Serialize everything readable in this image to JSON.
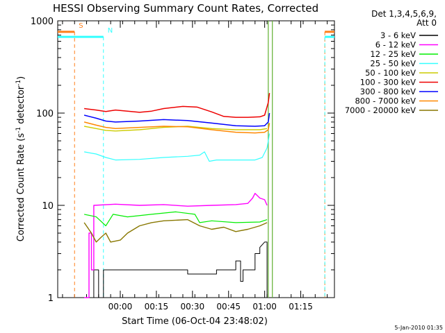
{
  "chart_data": {
    "type": "line",
    "title": "HESSI Observing Summary Count Rates, Corrected",
    "xlabel": "Start Time (06-Oct-04 23:48:02)",
    "ylabel_main": "Corrected Count Rate (s",
    "ylabel_sup1": "-1",
    "ylabel_mid": " detector",
    "ylabel_sup2": "-1",
    "ylabel_end": ")",
    "yscale": "log",
    "ylim": [
      1,
      1000
    ],
    "xlim_minutes_from_start": [
      -14,
      101
    ],
    "x_tick_minutes_from_start": [
      12,
      27,
      42,
      57,
      72,
      87
    ],
    "x_tick_labels": [
      "00:00",
      "00:15",
      "00:30",
      "00:45",
      "01:00",
      "01:15"
    ],
    "y_tick_values": [
      1,
      10,
      100,
      1000
    ],
    "y_tick_labels": [
      "1",
      "10",
      "100",
      "1000"
    ],
    "legend_header": [
      "Det 1,3,4,5,6,9,",
      "Att 0"
    ],
    "legend_position": "right",
    "footer_date": "5-Jan-2010 01:35",
    "markers": [
      {
        "label": "S",
        "x_start": -14,
        "x_end": -7,
        "y": 760,
        "color": "#ff7f1a",
        "line_x": [
          -7,
          97
        ]
      },
      {
        "label": "N",
        "x_start": -14,
        "x_end": 5,
        "y": 670,
        "color": "#33ffff",
        "line_x": [
          5,
          97
        ]
      }
    ],
    "vertical_lines": [
      {
        "x": 73.5,
        "color": "#5fb030"
      },
      {
        "x": 75.2,
        "color": "#5fb030"
      }
    ],
    "series": [
      {
        "name": "3 - 6 keV",
        "color": "#000000",
        "width": 1.0,
        "points": [
          [
            -1,
            1
          ],
          [
            1,
            1
          ],
          [
            1,
            2
          ],
          [
            3,
            2
          ],
          [
            3,
            1
          ],
          [
            5,
            1
          ],
          [
            5,
            2
          ],
          [
            40,
            2
          ],
          [
            40,
            1.8
          ],
          [
            52,
            1.8
          ],
          [
            52,
            2
          ],
          [
            60,
            2
          ],
          [
            60,
            2.5
          ],
          [
            62,
            2.5
          ],
          [
            62,
            1.5
          ],
          [
            63,
            1.5
          ],
          [
            63,
            2
          ],
          [
            68,
            2
          ],
          [
            68,
            3
          ],
          [
            70,
            3
          ],
          [
            70,
            3.5
          ],
          [
            72,
            4
          ],
          [
            73,
            4
          ],
          [
            73,
            1
          ]
        ]
      },
      {
        "name": "6 - 12 keV",
        "color": "#ff00ff",
        "width": 1.4,
        "points": [
          [
            -3,
            1
          ],
          [
            -1,
            1
          ],
          [
            -1,
            5
          ],
          [
            0,
            5
          ],
          [
            0,
            2
          ],
          [
            1,
            2
          ],
          [
            1,
            10
          ],
          [
            10,
            10.3
          ],
          [
            20,
            10
          ],
          [
            30,
            10.2
          ],
          [
            40,
            9.8
          ],
          [
            50,
            10
          ],
          [
            60,
            10.2
          ],
          [
            65,
            10.5
          ],
          [
            67,
            12
          ],
          [
            68,
            13.5
          ],
          [
            70,
            12
          ],
          [
            72,
            11.5
          ],
          [
            73,
            10
          ]
        ]
      },
      {
        "name": "12 - 25 keV",
        "color": "#00ee00",
        "width": 1.2,
        "points": [
          [
            -3,
            8
          ],
          [
            2,
            7.5
          ],
          [
            6,
            6
          ],
          [
            9,
            8
          ],
          [
            15,
            7.5
          ],
          [
            25,
            8
          ],
          [
            35,
            8.5
          ],
          [
            43,
            8
          ],
          [
            45,
            6.5
          ],
          [
            50,
            6.8
          ],
          [
            60,
            6.5
          ],
          [
            70,
            6.6
          ],
          [
            73,
            7
          ]
        ]
      },
      {
        "name": "25 - 50 keV",
        "color": "#33ffff",
        "width": 1.2,
        "points": [
          [
            -3,
            38
          ],
          [
            2,
            36
          ],
          [
            6,
            33
          ],
          [
            10,
            31
          ],
          [
            20,
            31.5
          ],
          [
            30,
            33
          ],
          [
            40,
            34
          ],
          [
            45,
            35
          ],
          [
            47,
            38
          ],
          [
            49,
            30
          ],
          [
            52,
            31
          ],
          [
            60,
            31
          ],
          [
            68,
            31
          ],
          [
            71,
            33
          ],
          [
            73,
            42
          ],
          [
            74,
            60
          ]
        ]
      },
      {
        "name": "50 - 100 keV",
        "color": "#cccc00",
        "width": 1.4,
        "points": [
          [
            -3,
            72
          ],
          [
            2,
            68
          ],
          [
            6,
            65
          ],
          [
            10,
            64
          ],
          [
            20,
            66
          ],
          [
            30,
            70
          ],
          [
            40,
            72
          ],
          [
            50,
            68
          ],
          [
            60,
            66
          ],
          [
            70,
            66
          ],
          [
            73,
            68
          ]
        ]
      },
      {
        "name": "100 - 300 keV",
        "color": "#ee0000",
        "width": 1.5,
        "points": [
          [
            -3,
            112
          ],
          [
            2,
            108
          ],
          [
            6,
            104
          ],
          [
            10,
            108
          ],
          [
            20,
            102
          ],
          [
            25,
            105
          ],
          [
            30,
            112
          ],
          [
            38,
            118
          ],
          [
            44,
            116
          ],
          [
            50,
            103
          ],
          [
            55,
            92
          ],
          [
            60,
            90
          ],
          [
            65,
            90
          ],
          [
            70,
            91
          ],
          [
            72,
            95
          ],
          [
            73.5,
            130
          ],
          [
            74,
            165
          ]
        ]
      },
      {
        "name": "300 - 800 keV",
        "color": "#0000ff",
        "width": 1.5,
        "points": [
          [
            -3,
            95
          ],
          [
            2,
            88
          ],
          [
            6,
            82
          ],
          [
            10,
            80
          ],
          [
            20,
            82
          ],
          [
            30,
            85
          ],
          [
            40,
            83
          ],
          [
            50,
            78
          ],
          [
            60,
            73
          ],
          [
            68,
            72
          ],
          [
            72,
            73
          ],
          [
            73.5,
            80
          ],
          [
            74,
            100
          ]
        ]
      },
      {
        "name": "800 - 7000 keV",
        "color": "#ff8800",
        "width": 1.5,
        "points": [
          [
            -3,
            80
          ],
          [
            2,
            74
          ],
          [
            6,
            70
          ],
          [
            10,
            68
          ],
          [
            20,
            70
          ],
          [
            30,
            72
          ],
          [
            40,
            71
          ],
          [
            50,
            66
          ],
          [
            60,
            62
          ],
          [
            68,
            61
          ],
          [
            72,
            62
          ],
          [
            73.5,
            66
          ],
          [
            74,
            78
          ]
        ]
      },
      {
        "name": "7000 - 20000 keV",
        "color": "#887700",
        "width": 1.4,
        "points": [
          [
            -3,
            6.5
          ],
          [
            0,
            5
          ],
          [
            2,
            4
          ],
          [
            4,
            4.5
          ],
          [
            6,
            5
          ],
          [
            8,
            4
          ],
          [
            12,
            4.2
          ],
          [
            15,
            5
          ],
          [
            20,
            6
          ],
          [
            25,
            6.5
          ],
          [
            30,
            6.8
          ],
          [
            40,
            7
          ],
          [
            45,
            6
          ],
          [
            50,
            5.5
          ],
          [
            55,
            5.8
          ],
          [
            60,
            5.2
          ],
          [
            65,
            5.5
          ],
          [
            70,
            6
          ],
          [
            73,
            6.5
          ]
        ]
      }
    ]
  }
}
